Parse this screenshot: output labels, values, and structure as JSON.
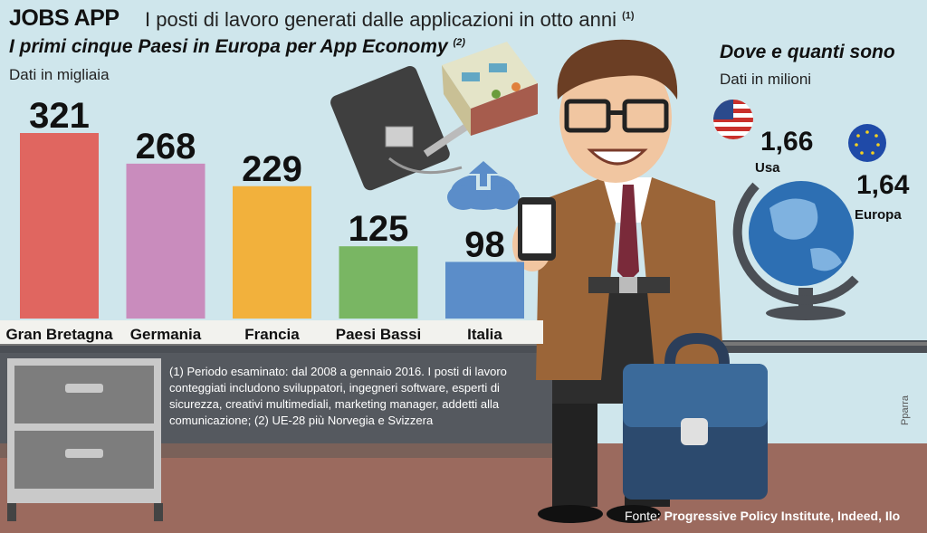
{
  "header": {
    "brand": "JOBS APP",
    "headline": "I posti di lavoro generati dalle applicazioni in otto anni",
    "headline_note": "(1)"
  },
  "chart_data": {
    "type": "bar",
    "title": "I primi cinque Paesi in Europa per App Economy",
    "title_note": "(2)",
    "units": "Dati in migliaia",
    "categories": [
      "Gran Bretagna",
      "Germania",
      "Francia",
      "Paesi Bassi",
      "Italia"
    ],
    "values": [
      321,
      268,
      229,
      125,
      98
    ],
    "colors": [
      "#e06660",
      "#c98cbd",
      "#f2b13c",
      "#79b663",
      "#5b8dc9"
    ],
    "highlight_color": "#e05a50",
    "highlight_index": 4,
    "ylim": [
      0,
      321
    ],
    "grid": false
  },
  "side_panel": {
    "title": "Dove e quanti sono",
    "units": "Dati in milioni",
    "usa": {
      "value": "1,66",
      "label": "Usa"
    },
    "europe": {
      "value": "1,64",
      "label": "Europa"
    }
  },
  "footnote": "(1) Periodo esaminato: dal 2008 a gennaio 2016. I posti di lavoro conteggiati includono sviluppatori, ingegneri software, esperti di sicurezza, creativi multimediali, marketing manager, addetti alla comunicazione; (2) UE-28 più Norvegia e Svizzera",
  "source": {
    "prefix": "Fonte:",
    "text": "Progressive Policy Institute, Indeed, Ilo"
  },
  "credit": "Pparra",
  "icons": [
    "usa-flag-icon",
    "eu-flag-icon",
    "globe-icon",
    "smartphone-icon",
    "briefcase-icon",
    "tablet-cover-icon",
    "office-room-icon",
    "cloud-upload-icon",
    "businessman-illustration",
    "drawer-cabinet-icon"
  ]
}
